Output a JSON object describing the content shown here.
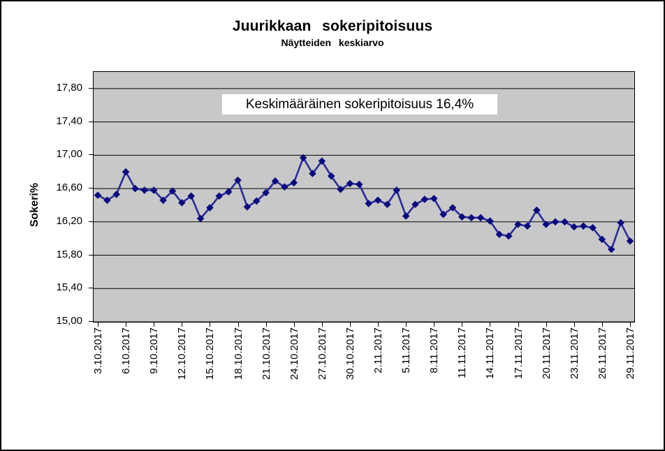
{
  "chart_data": {
    "type": "line",
    "title": "Juurikkaan sokeripitoisuus",
    "subtitle": "Näytteiden keskiarvo",
    "ylabel": "Sokeri%",
    "xlabel": "",
    "annotation": "Keskimääräinen sokeripitoisuus 16,4%",
    "legend": "none",
    "grid": "horizontal",
    "marker": "diamond",
    "ylim": [
      15.0,
      18.0
    ],
    "y_tick_values": [
      17.8,
      17.4,
      17.0,
      16.6,
      16.2,
      15.8,
      15.4,
      15.0
    ],
    "y_tick_labels": [
      "17,80",
      "17,40",
      "17,00",
      "16,60",
      "16,20",
      "15,80",
      "15,40",
      "15,00"
    ],
    "x_tick_every": 3,
    "x": [
      "3.10.2017",
      "4.10.2017",
      "5.10.2017",
      "6.10.2017",
      "7.10.2017",
      "8.10.2017",
      "9.10.2017",
      "10.10.2017",
      "11.10.2017",
      "12.10.2017",
      "13.10.2017",
      "14.10.2017",
      "15.10.2017",
      "16.10.2017",
      "17.10.2017",
      "18.10.2017",
      "19.10.2017",
      "20.10.2017",
      "21.10.2017",
      "22.10.2017",
      "23.10.2017",
      "24.10.2017",
      "25.10.2017",
      "26.10.2017",
      "27.10.2017",
      "28.10.2017",
      "29.10.2017",
      "30.10.2017",
      "31.10.2017",
      "1.11.2017",
      "2.11.2017",
      "3.11.2017",
      "4.11.2017",
      "5.11.2017",
      "6.11.2017",
      "7.11.2017",
      "8.11.2017",
      "9.11.2017",
      "10.11.2017",
      "11.11.2017",
      "12.11.2017",
      "13.11.2017",
      "14.11.2017",
      "15.11.2017",
      "16.11.2017",
      "17.11.2017",
      "18.11.2017",
      "19.11.2017",
      "20.11.2017",
      "21.11.2017",
      "22.11.2017",
      "23.11.2017",
      "24.11.2017",
      "25.11.2017",
      "26.11.2017",
      "27.11.2017",
      "28.11.2017",
      "29.11.2017"
    ],
    "values": [
      16.52,
      16.46,
      16.53,
      16.8,
      16.6,
      16.58,
      16.58,
      16.46,
      16.57,
      16.43,
      16.51,
      16.24,
      16.37,
      16.51,
      16.56,
      16.7,
      16.38,
      16.45,
      16.55,
      16.69,
      16.62,
      16.67,
      16.97,
      16.78,
      16.93,
      16.75,
      16.59,
      16.66,
      16.65,
      16.42,
      16.46,
      16.41,
      16.58,
      16.27,
      16.41,
      16.47,
      16.48,
      16.29,
      16.37,
      16.26,
      16.25,
      16.25,
      16.21,
      16.05,
      16.03,
      16.17,
      16.15,
      16.34,
      16.17,
      16.2,
      16.2,
      16.14,
      16.15,
      16.13,
      15.99,
      15.87,
      16.19,
      15.97
    ],
    "colors": {
      "line": "#2A2A9B",
      "marker": "#0A0A7E",
      "plot_bg": "#C8C8C8",
      "gridline": "#000000",
      "annotation_bg": "#FFFFFF",
      "text": "#000000"
    }
  }
}
